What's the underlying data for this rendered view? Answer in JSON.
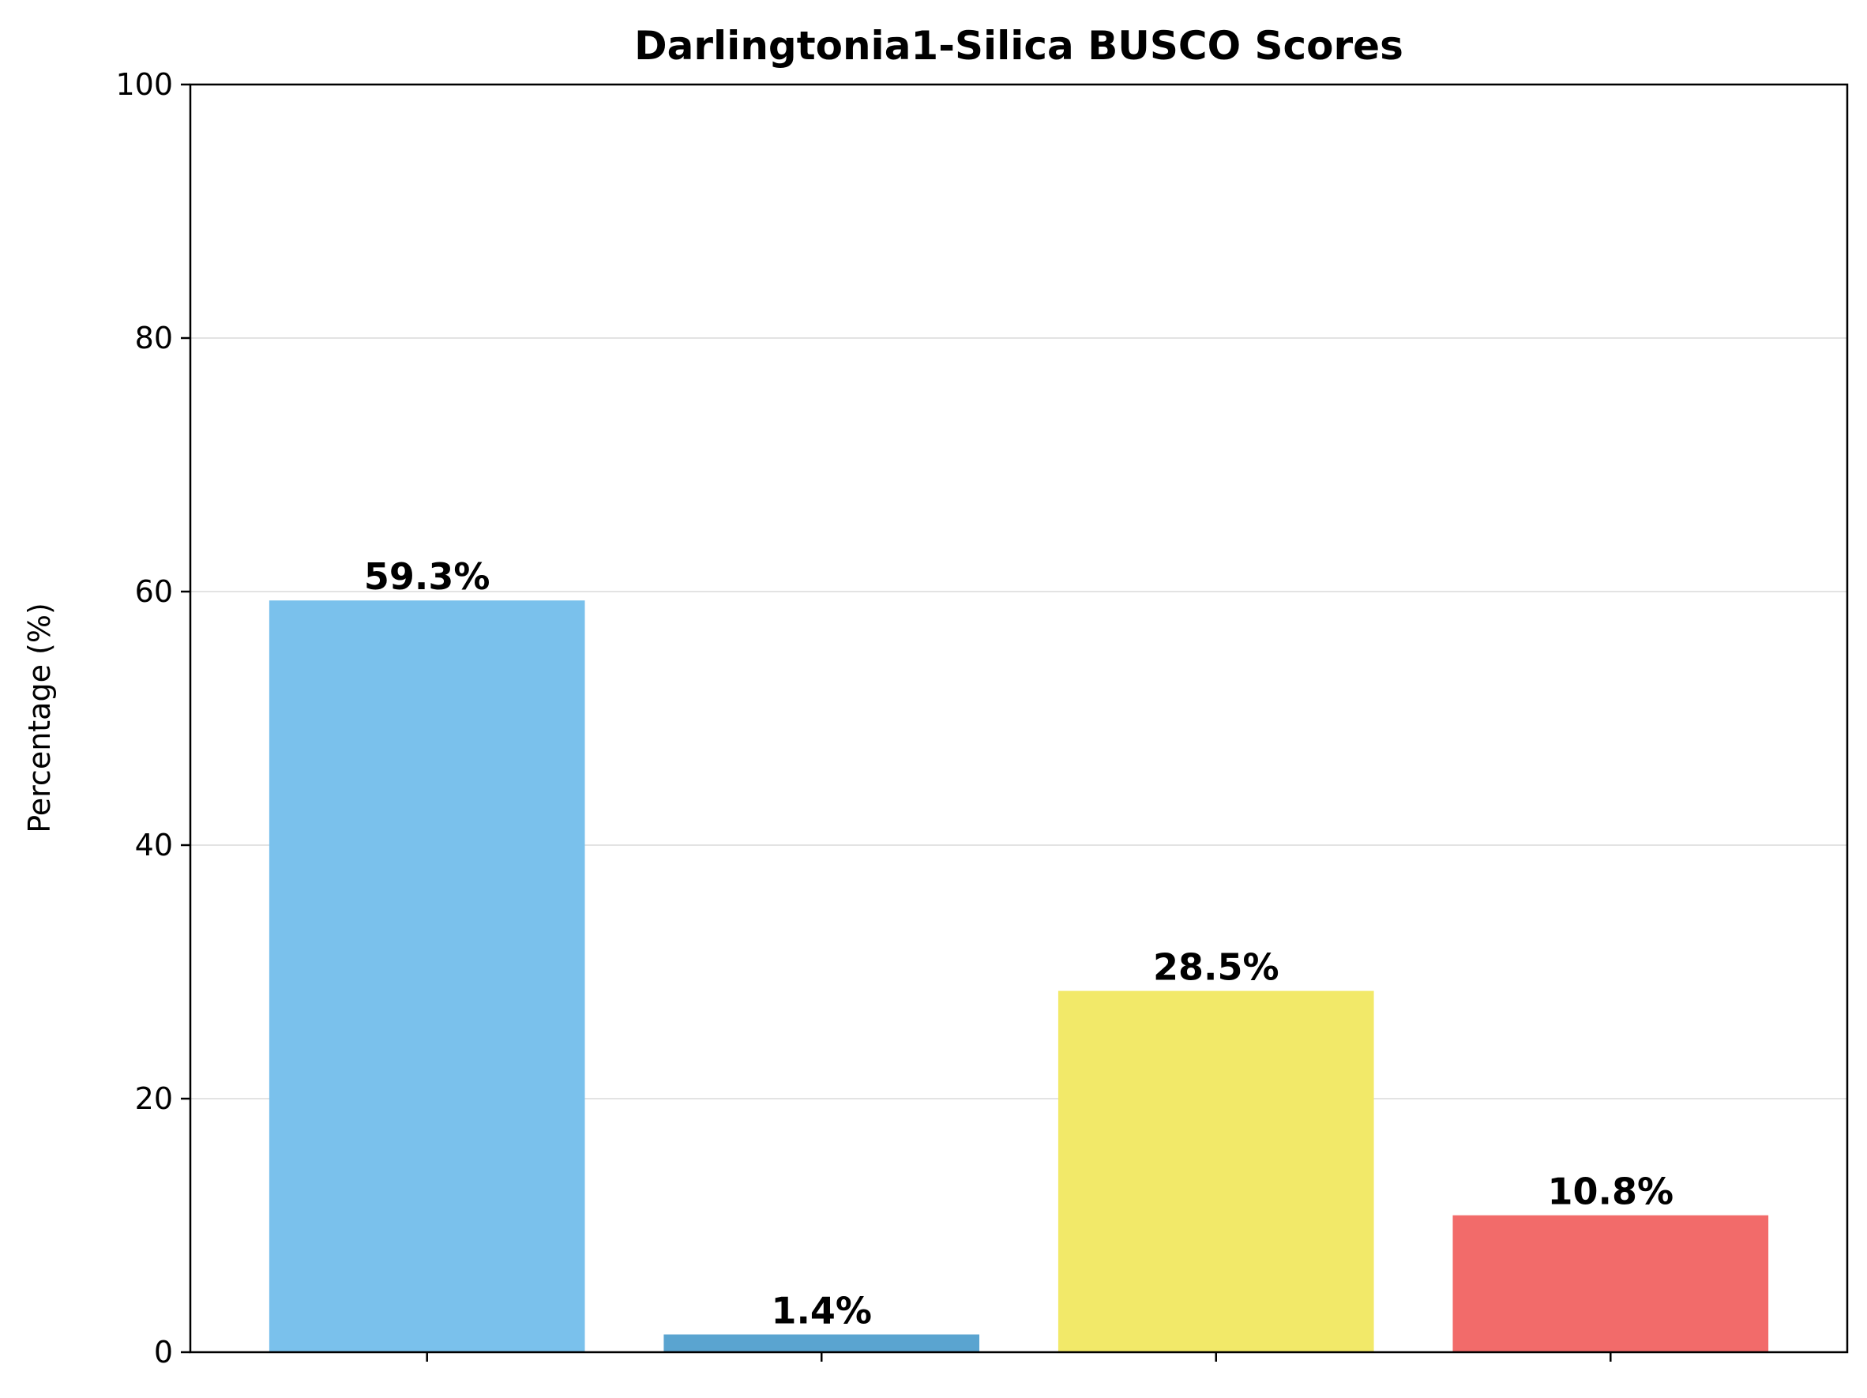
{
  "chart_data": {
    "type": "bar",
    "title": "Darlingtonia1-Silica BUSCO Scores",
    "xlabel": "",
    "ylabel": "Percentage (%)",
    "categories": [
      "",
      "",
      "",
      ""
    ],
    "values": [
      59.3,
      1.4,
      28.5,
      10.8
    ],
    "value_labels": [
      "59.3%",
      "1.4%",
      "28.5%",
      "10.8%"
    ],
    "colors": [
      "#7ac1ec",
      "#5aa4d0",
      "#f2e969",
      "#f26b6a"
    ],
    "ylim": [
      0,
      100
    ],
    "yticks": [
      0,
      20,
      40,
      60,
      80,
      100
    ],
    "ytick_labels": [
      "0",
      "20",
      "40",
      "60",
      "80",
      "100"
    ],
    "grid": "horizontal",
    "grid_color": "#e3e3e3",
    "legend": "none"
  }
}
